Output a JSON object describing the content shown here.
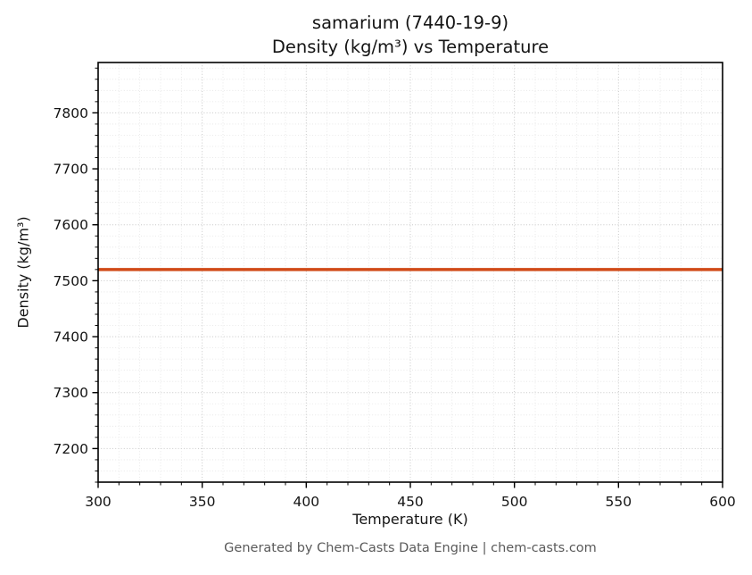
{
  "footer": {
    "caption": "Generated by Chem-Casts Data Engine | chem-casts.com"
  },
  "chart_data": {
    "type": "line",
    "title": "samarium (7440-19-9) — Density (kg/m³) vs Temperature",
    "title_line1": "samarium (7440-19-9)",
    "title_line2": "Density (kg/m³) vs Temperature",
    "xlabel": "Temperature (K)",
    "ylabel": "Density (kg/m³)",
    "xlim": [
      300,
      600
    ],
    "ylim": [
      7140,
      7890
    ],
    "x_ticks": [
      300,
      350,
      400,
      450,
      500,
      550,
      600
    ],
    "y_ticks": [
      7200,
      7300,
      7400,
      7500,
      7600,
      7700,
      7800
    ],
    "x_minor_step": 10,
    "y_minor_step": 20,
    "grid": true,
    "legend_position": "none",
    "series": [
      {
        "name": "density",
        "label": "Density (kg/m³)",
        "color": "#d14a18",
        "x": [
          300,
          600
        ],
        "y": [
          7520,
          7520
        ],
        "constant_value": 7520
      }
    ]
  }
}
